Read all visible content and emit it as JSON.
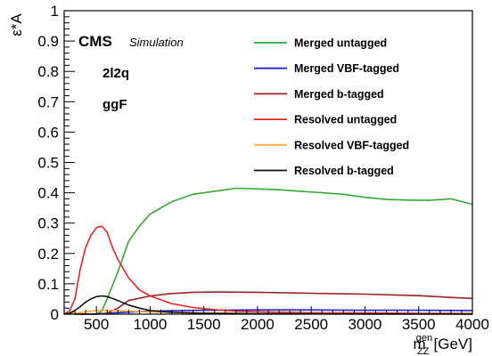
{
  "chart_data": {
    "type": "line",
    "xlabel": "m",
    "xlabel_sup": "gen",
    "xlabel_sub": "ZZ",
    "xlabel_unit": "[GeV]",
    "ylabel": "ε*A",
    "xlim": [
      200,
      4000
    ],
    "ylim": [
      0,
      1
    ],
    "xticks": [
      500,
      1000,
      1500,
      2000,
      2500,
      3000,
      3500,
      4000
    ],
    "yticks": [
      0,
      0.1,
      0.2,
      0.3,
      0.4,
      0.5,
      0.6,
      0.7,
      0.8,
      0.9,
      1
    ],
    "ytick_labels": [
      "0",
      "0.1",
      "0.2",
      "0.3",
      "0.4",
      "0.5",
      "0.6",
      "0.7",
      "0.8",
      "0.9",
      "1"
    ],
    "grid": false,
    "legend_position": "top-right",
    "annotations": {
      "experiment": "CMS",
      "status": "Simulation",
      "channel": "2l2q",
      "production": "ggF"
    },
    "series": [
      {
        "name": "Merged untagged",
        "color": "#33aa33",
        "x": [
          300,
          400,
          500,
          550,
          600,
          700,
          800,
          900,
          1000,
          1200,
          1400,
          1600,
          1800,
          2000,
          2200,
          2400,
          2600,
          2800,
          3000,
          3200,
          3400,
          3600,
          3800,
          4000
        ],
        "y": [
          0,
          0,
          0,
          0.01,
          0.05,
          0.14,
          0.24,
          0.29,
          0.33,
          0.37,
          0.395,
          0.405,
          0.415,
          0.413,
          0.41,
          0.405,
          0.4,
          0.395,
          0.385,
          0.378,
          0.376,
          0.375,
          0.38,
          0.362
        ]
      },
      {
        "name": "Merged VBF-tagged",
        "color": "#2222dd",
        "x": [
          300,
          500,
          700,
          1000,
          1500,
          2000,
          2500,
          3000,
          3500,
          4000
        ],
        "y": [
          0,
          0.001,
          0.005,
          0.01,
          0.013,
          0.014,
          0.014,
          0.013,
          0.013,
          0.012
        ]
      },
      {
        "name": "Merged b-tagged",
        "color": "#992222",
        "x": [
          300,
          500,
          600,
          700,
          800,
          1000,
          1200,
          1400,
          1600,
          2000,
          2500,
          3000,
          3500,
          3800,
          4000
        ],
        "y": [
          0,
          0,
          0.003,
          0.02,
          0.045,
          0.06,
          0.068,
          0.072,
          0.073,
          0.072,
          0.069,
          0.066,
          0.061,
          0.055,
          0.052
        ]
      },
      {
        "name": "Resolved untagged",
        "color": "#ee2222",
        "x": [
          200,
          250,
          300,
          350,
          400,
          450,
          500,
          550,
          600,
          650,
          700,
          800,
          900,
          1000,
          1200,
          1400,
          1600,
          1800,
          2000,
          2500,
          3000,
          3500,
          4000
        ],
        "y": [
          0,
          0.01,
          0.05,
          0.15,
          0.22,
          0.26,
          0.285,
          0.29,
          0.27,
          0.22,
          0.18,
          0.12,
          0.08,
          0.06,
          0.035,
          0.022,
          0.015,
          0.01,
          0.008,
          0.005,
          0.004,
          0.003,
          0.002
        ]
      },
      {
        "name": "Resolved VBF-tagged",
        "color": "#ffaa33",
        "x": [
          200,
          300,
          400,
          500,
          600,
          700,
          800,
          1000,
          1500,
          2000,
          3000,
          4000
        ],
        "y": [
          0,
          0.003,
          0.008,
          0.012,
          0.013,
          0.012,
          0.01,
          0.007,
          0.004,
          0.002,
          0.001,
          0.0005
        ]
      },
      {
        "name": "Resolved b-tagged",
        "color": "#111111",
        "x": [
          200,
          250,
          300,
          350,
          400,
          450,
          500,
          550,
          600,
          650,
          700,
          800,
          900,
          1000,
          1200,
          1500,
          2000,
          2500,
          3000,
          4000
        ],
        "y": [
          0,
          0.003,
          0.012,
          0.025,
          0.04,
          0.05,
          0.058,
          0.06,
          0.058,
          0.052,
          0.045,
          0.03,
          0.02,
          0.012,
          0.006,
          0.003,
          0.0015,
          0.001,
          0.0005,
          0.0003
        ]
      }
    ]
  }
}
